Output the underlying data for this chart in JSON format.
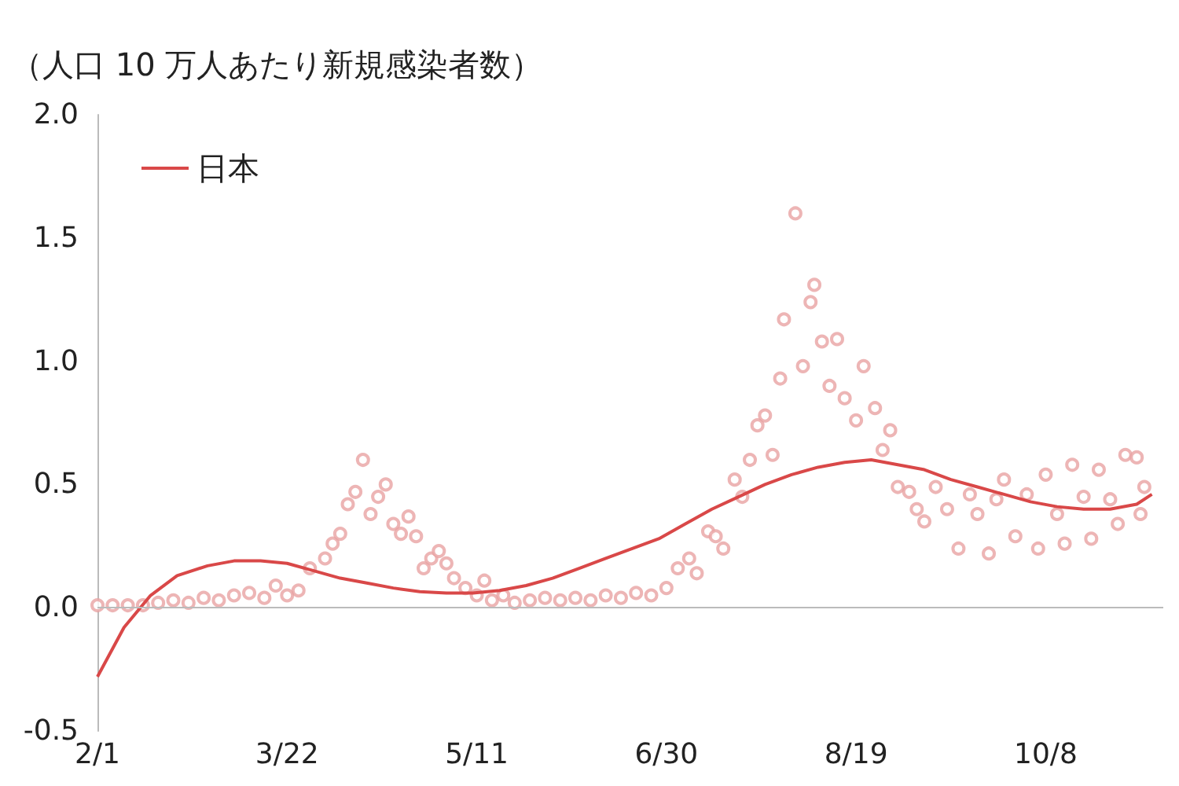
{
  "chart_data": {
    "type": "scatter",
    "ylabel": "（人口 10 万人あたり新規感染者数）",
    "xlim": [
      "--02-01",
      "--11-08"
    ],
    "xticks": [
      {
        "value": "--02-01",
        "label": "2/1"
      },
      {
        "value": "--03-22",
        "label": "3/22"
      },
      {
        "value": "--05-11",
        "label": "5/11"
      },
      {
        "value": "--06-30",
        "label": "6/30"
      },
      {
        "value": "--08-19",
        "label": "8/19"
      },
      {
        "value": "--10-08",
        "label": "10/8"
      }
    ],
    "ylim": [
      -0.5,
      2.0
    ],
    "yticks": [
      {
        "value": -0.5,
        "label": "-0.5"
      },
      {
        "value": 0,
        "label": "0.0"
      },
      {
        "value": 0.5,
        "label": "0.5"
      },
      {
        "value": 1,
        "label": "1.0"
      },
      {
        "value": 1.5,
        "label": "1.5"
      },
      {
        "value": 2,
        "label": "2.0"
      }
    ],
    "grid": false,
    "legend": "top left",
    "ref_lines": [
      {
        "axis": "y",
        "value": 0,
        "color": "#bbbbbb"
      }
    ],
    "series": [
      {
        "type": "scatter",
        "color": "#e8a3a3",
        "marker": "circle",
        "x": [
          "--02-01",
          "--02-05",
          "--02-09",
          "--02-13",
          "--02-17",
          "--02-21",
          "--02-25",
          "--02-29",
          "--03-04",
          "--03-08",
          "--03-12",
          "--03-16",
          "--03-19",
          "--03-22",
          "--03-25",
          "--03-28",
          "--04-01",
          "--04-03",
          "--04-05",
          "--04-07",
          "--04-09",
          "--04-11",
          "--04-13",
          "--04-15",
          "--04-17",
          "--04-19",
          "--04-21",
          "--04-23",
          "--04-25",
          "--04-27",
          "--04-29",
          "--05-01",
          "--05-03",
          "--05-05",
          "--05-08",
          "--05-11",
          "--05-13",
          "--05-15",
          "--05-18",
          "--05-21",
          "--05-25",
          "--05-29",
          "--06-02",
          "--06-06",
          "--06-10",
          "--06-14",
          "--06-18",
          "--06-22",
          "--06-26",
          "--06-30",
          "--07-03",
          "--07-06",
          "--07-08",
          "--07-11",
          "--07-13",
          "--07-15",
          "--07-18",
          "--07-20",
          "--07-22",
          "--07-24",
          "--07-26",
          "--07-28",
          "--07-30",
          "--07-31",
          "--08-03",
          "--08-05",
          "--08-07",
          "--08-08",
          "--08-10",
          "--08-12",
          "--08-14",
          "--08-16",
          "--08-19",
          "--08-21",
          "--08-24",
          "--08-26",
          "--08-28",
          "--08-30",
          "--09-02",
          "--09-04",
          "--09-06",
          "--09-09",
          "--09-12",
          "--09-15",
          "--09-18",
          "--09-20",
          "--09-23",
          "--09-25",
          "--09-27",
          "--09-30",
          "--10-03",
          "--10-06",
          "--10-08",
          "--10-11",
          "--10-13",
          "--10-15",
          "--10-18",
          "--10-20",
          "--10-22",
          "--10-25",
          "--10-27",
          "--10-29",
          "--11-01",
          "--11-02",
          "--11-03"
        ],
        "values": [
          0.01,
          0.01,
          0.01,
          0.01,
          0.02,
          0.03,
          0.02,
          0.04,
          0.03,
          0.05,
          0.06,
          0.04,
          0.09,
          0.05,
          0.07,
          0.16,
          0.2,
          0.26,
          0.3,
          0.42,
          0.47,
          0.6,
          0.38,
          0.45,
          0.5,
          0.34,
          0.3,
          0.37,
          0.29,
          0.16,
          0.2,
          0.23,
          0.18,
          0.12,
          0.08,
          0.05,
          0.11,
          0.03,
          0.05,
          0.02,
          0.03,
          0.04,
          0.03,
          0.04,
          0.03,
          0.05,
          0.04,
          0.06,
          0.05,
          0.08,
          0.16,
          0.2,
          0.14,
          0.31,
          0.29,
          0.24,
          0.52,
          0.45,
          0.6,
          0.74,
          0.78,
          0.62,
          0.93,
          1.17,
          1.6,
          0.98,
          1.24,
          1.31,
          1.08,
          0.9,
          1.09,
          0.85,
          0.76,
          0.98,
          0.81,
          0.64,
          0.72,
          0.49,
          0.47,
          0.4,
          0.35,
          0.49,
          0.4,
          0.24,
          0.46,
          0.38,
          0.22,
          0.44,
          0.52,
          0.29,
          0.46,
          0.24,
          0.54,
          0.38,
          0.26,
          0.58,
          0.45,
          0.28,
          0.56,
          0.44,
          0.34,
          0.62,
          0.61,
          0.38,
          0.49
        ]
      },
      {
        "type": "line",
        "name": "日本",
        "color": "#d94848",
        "marker": "none",
        "line_style": "solid",
        "x": [
          "--02-01",
          "--02-08",
          "--02-15",
          "--02-22",
          "--03-01",
          "--03-08",
          "--03-15",
          "--03-22",
          "--03-29",
          "--04-05",
          "--04-12",
          "--04-19",
          "--04-26",
          "--05-03",
          "--05-10",
          "--05-17",
          "--05-24",
          "--05-31",
          "--06-07",
          "--06-14",
          "--06-21",
          "--06-28",
          "--07-05",
          "--07-12",
          "--07-19",
          "--07-26",
          "--08-02",
          "--08-09",
          "--08-16",
          "--08-23",
          "--08-30",
          "--09-06",
          "--09-13",
          "--09-20",
          "--09-27",
          "--10-04",
          "--10-11",
          "--10-18",
          "--10-25",
          "--11-01",
          "--11-05"
        ],
        "values": [
          -0.28,
          -0.08,
          0.05,
          0.13,
          0.17,
          0.19,
          0.19,
          0.18,
          0.15,
          0.12,
          0.1,
          0.08,
          0.065,
          0.06,
          0.06,
          0.07,
          0.09,
          0.12,
          0.16,
          0.2,
          0.24,
          0.28,
          0.34,
          0.4,
          0.45,
          0.5,
          0.54,
          0.57,
          0.59,
          0.6,
          0.58,
          0.56,
          0.52,
          0.49,
          0.46,
          0.43,
          0.41,
          0.4,
          0.4,
          0.42,
          0.46
        ]
      }
    ]
  }
}
